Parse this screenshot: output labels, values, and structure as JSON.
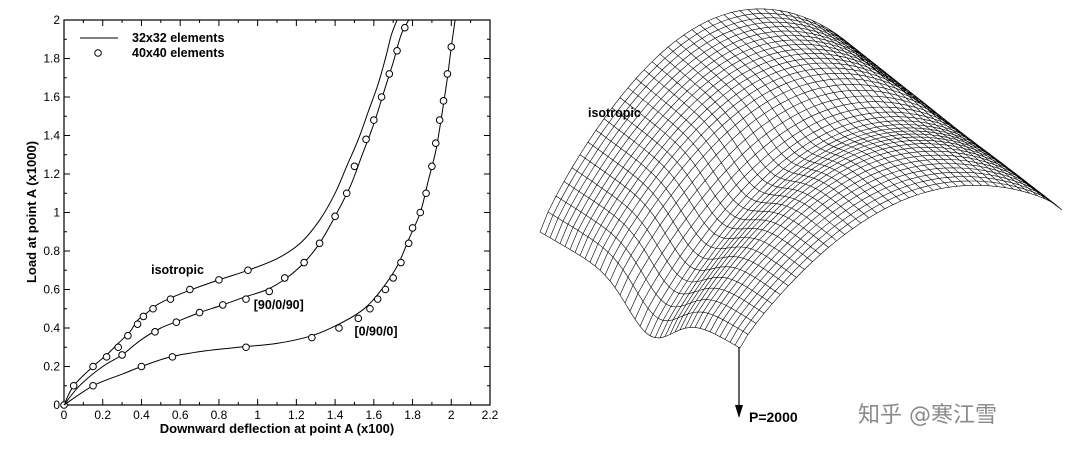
{
  "chart_data": {
    "type": "line",
    "xlabel": "Downward deflection at point A (x100)",
    "ylabel": "Load at point A (x1000)",
    "xlim": [
      0,
      2.2
    ],
    "ylim": [
      0,
      2
    ],
    "xticks": [
      "0",
      "0.2",
      "0.4",
      "0.6",
      "0.8",
      "1",
      "1.2",
      "1.4",
      "1.6",
      "1.8",
      "2",
      "2.2"
    ],
    "yticks": [
      "0",
      "0.2",
      "0.4",
      "0.6",
      "0.8",
      "1",
      "1.2",
      "1.4",
      "1.6",
      "1.8",
      "2"
    ],
    "grid": false,
    "legend_position": "top-left",
    "legend": [
      {
        "label": "32x32 elements",
        "marker": "line"
      },
      {
        "label": "40x40 elements",
        "marker": "circle"
      }
    ],
    "series": [
      {
        "label": "isotropic",
        "points": [
          [
            0,
            0
          ],
          [
            0.05,
            0.1
          ],
          [
            0.15,
            0.2
          ],
          [
            0.22,
            0.26
          ],
          [
            0.28,
            0.32
          ],
          [
            0.34,
            0.38
          ],
          [
            0.38,
            0.44
          ],
          [
            0.43,
            0.48
          ],
          [
            0.48,
            0.52
          ],
          [
            0.56,
            0.56
          ],
          [
            0.66,
            0.6
          ],
          [
            0.8,
            0.65
          ],
          [
            0.95,
            0.7
          ],
          [
            1.1,
            0.76
          ],
          [
            1.22,
            0.84
          ],
          [
            1.32,
            0.96
          ],
          [
            1.4,
            1.1
          ],
          [
            1.46,
            1.24
          ],
          [
            1.52,
            1.38
          ],
          [
            1.57,
            1.52
          ],
          [
            1.62,
            1.66
          ],
          [
            1.66,
            1.8
          ],
          [
            1.69,
            1.92
          ],
          [
            1.72,
            2.0
          ]
        ],
        "markers": [
          [
            0,
            0
          ],
          [
            0.05,
            0.1
          ],
          [
            0.15,
            0.2
          ],
          [
            0.22,
            0.25
          ],
          [
            0.28,
            0.3
          ],
          [
            0.33,
            0.36
          ],
          [
            0.38,
            0.42
          ],
          [
            0.41,
            0.46
          ],
          [
            0.46,
            0.5
          ],
          [
            0.55,
            0.55
          ],
          [
            0.65,
            0.6
          ],
          [
            0.8,
            0.65
          ],
          [
            0.95,
            0.7
          ]
        ]
      },
      {
        "label": "[90/0/90]",
        "points": [
          [
            0,
            0
          ],
          [
            0.08,
            0.1
          ],
          [
            0.2,
            0.2
          ],
          [
            0.3,
            0.26
          ],
          [
            0.4,
            0.34
          ],
          [
            0.5,
            0.4
          ],
          [
            0.6,
            0.44
          ],
          [
            0.7,
            0.48
          ],
          [
            0.82,
            0.52
          ],
          [
            0.93,
            0.56
          ],
          [
            1.05,
            0.6
          ],
          [
            1.15,
            0.66
          ],
          [
            1.24,
            0.74
          ],
          [
            1.32,
            0.84
          ],
          [
            1.4,
            0.98
          ],
          [
            1.48,
            1.14
          ],
          [
            1.54,
            1.3
          ],
          [
            1.6,
            1.46
          ],
          [
            1.65,
            1.62
          ],
          [
            1.7,
            1.78
          ],
          [
            1.74,
            1.92
          ],
          [
            1.78,
            2.0
          ]
        ],
        "markers": [
          [
            0.3,
            0.26
          ],
          [
            0.47,
            0.38
          ],
          [
            0.58,
            0.43
          ],
          [
            0.7,
            0.48
          ],
          [
            0.82,
            0.52
          ],
          [
            0.94,
            0.55
          ],
          [
            1.06,
            0.59
          ],
          [
            1.14,
            0.66
          ],
          [
            1.24,
            0.74
          ],
          [
            1.32,
            0.84
          ],
          [
            1.4,
            0.98
          ],
          [
            1.46,
            1.1
          ],
          [
            1.5,
            1.24
          ],
          [
            1.56,
            1.38
          ],
          [
            1.6,
            1.48
          ],
          [
            1.64,
            1.6
          ],
          [
            1.68,
            1.72
          ],
          [
            1.72,
            1.84
          ],
          [
            1.76,
            1.96
          ]
        ]
      },
      {
        "label": "[0/90/0]",
        "points": [
          [
            0,
            0
          ],
          [
            0.15,
            0.1
          ],
          [
            0.3,
            0.16
          ],
          [
            0.4,
            0.2
          ],
          [
            0.55,
            0.25
          ],
          [
            0.72,
            0.28
          ],
          [
            0.9,
            0.3
          ],
          [
            1.1,
            0.32
          ],
          [
            1.28,
            0.36
          ],
          [
            1.42,
            0.42
          ],
          [
            1.55,
            0.5
          ],
          [
            1.64,
            0.6
          ],
          [
            1.72,
            0.72
          ],
          [
            1.78,
            0.86
          ],
          [
            1.84,
            1.0
          ],
          [
            1.88,
            1.16
          ],
          [
            1.92,
            1.32
          ],
          [
            1.95,
            1.5
          ],
          [
            1.98,
            1.7
          ],
          [
            2.0,
            1.86
          ],
          [
            2.02,
            2.0
          ]
        ],
        "markers": [
          [
            0.15,
            0.1
          ],
          [
            0.4,
            0.2
          ],
          [
            0.56,
            0.25
          ],
          [
            0.94,
            0.3
          ],
          [
            1.28,
            0.35
          ],
          [
            1.42,
            0.4
          ],
          [
            1.52,
            0.45
          ],
          [
            1.58,
            0.5
          ],
          [
            1.62,
            0.55
          ],
          [
            1.66,
            0.6
          ],
          [
            1.7,
            0.66
          ],
          [
            1.74,
            0.74
          ],
          [
            1.78,
            0.84
          ],
          [
            1.8,
            0.92
          ],
          [
            1.84,
            1.0
          ],
          [
            1.87,
            1.1
          ],
          [
            1.9,
            1.24
          ],
          [
            1.92,
            1.36
          ],
          [
            1.94,
            1.48
          ],
          [
            1.96,
            1.58
          ],
          [
            1.98,
            1.72
          ],
          [
            2.0,
            1.86
          ]
        ]
      }
    ],
    "annotations": [
      {
        "text": "isotropic",
        "at": [
          0.45,
          0.68
        ]
      },
      {
        "text": "[90/0/90]",
        "at": [
          0.98,
          0.5
        ]
      },
      {
        "text": "[0/90/0]",
        "at": [
          1.5,
          0.36
        ]
      }
    ]
  },
  "surface": {
    "label": "isotropic",
    "load_label": "P=2000",
    "load_arrow": true
  },
  "watermark": "知乎 @寒江雪"
}
